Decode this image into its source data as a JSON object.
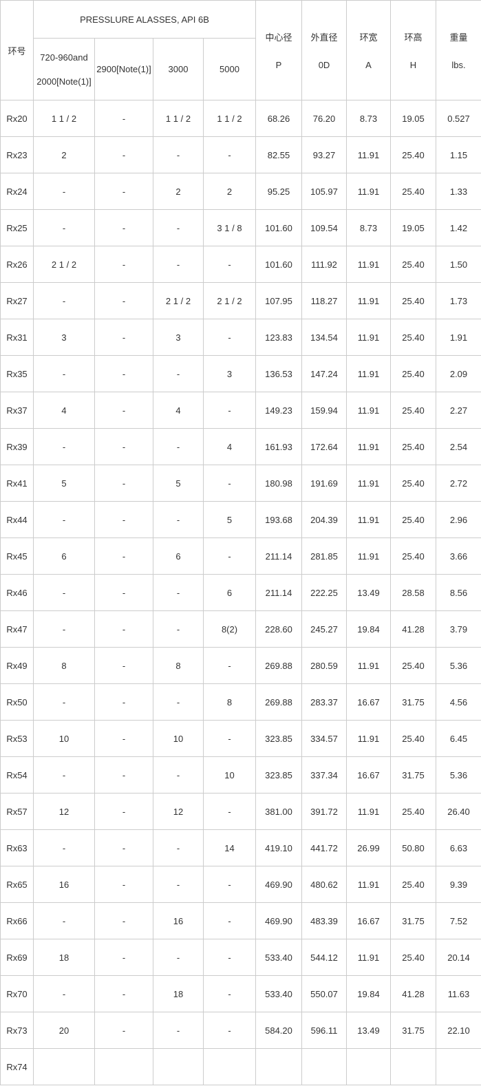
{
  "colors": {
    "border": "#cccccc",
    "text": "#333333",
    "background": "#ffffff"
  },
  "table": {
    "header": {
      "ring_no_label": "环号",
      "pressure_classes_title": "PRESSLURE ALASSES, API 6B",
      "pressure_class_cols": [
        {
          "line1": "720-960and",
          "line2": "2000[Note(1)]"
        },
        {
          "line1": "2900[Note(1)]",
          "line2": ""
        },
        {
          "line1": "3000",
          "line2": ""
        },
        {
          "line1": "5000",
          "line2": ""
        }
      ],
      "metrics": [
        {
          "cn": "中心径",
          "sym": "P"
        },
        {
          "cn": "外直径",
          "sym": "0D"
        },
        {
          "cn": "环宽",
          "sym": "A"
        },
        {
          "cn": "环高",
          "sym": "H"
        },
        {
          "cn": "重量",
          "sym": "lbs."
        }
      ]
    },
    "rows": [
      {
        "ring": "Rx20",
        "cells": [
          "1 1 / 2",
          "-",
          "1 1 / 2",
          "1 1 / 2",
          "68.26",
          "76.20",
          "8.73",
          "19.05",
          "0.527"
        ]
      },
      {
        "ring": "Rx23",
        "cells": [
          "2",
          "-",
          "-",
          "-",
          "82.55",
          "93.27",
          "11.91",
          "25.40",
          "1.15"
        ]
      },
      {
        "ring": "Rx24",
        "cells": [
          "-",
          "-",
          "2",
          "2",
          "95.25",
          "105.97",
          "11.91",
          "25.40",
          "1.33"
        ]
      },
      {
        "ring": "Rx25",
        "cells": [
          "-",
          "-",
          "-",
          "3 1 / 8",
          "101.60",
          "109.54",
          "8.73",
          "19.05",
          "1.42"
        ]
      },
      {
        "ring": "Rx26",
        "cells": [
          "2 1 / 2",
          "-",
          "-",
          "-",
          "101.60",
          "111.92",
          "11.91",
          "25.40",
          "1.50"
        ]
      },
      {
        "ring": "Rx27",
        "cells": [
          "-",
          "-",
          "2 1 / 2",
          "2 1 / 2",
          "107.95",
          "118.27",
          "11.91",
          "25.40",
          "1.73"
        ]
      },
      {
        "ring": "Rx31",
        "cells": [
          "3",
          "-",
          "3",
          "-",
          "123.83",
          "134.54",
          "11.91",
          "25.40",
          "1.91"
        ]
      },
      {
        "ring": "Rx35",
        "cells": [
          "-",
          "-",
          "-",
          "3",
          "136.53",
          "147.24",
          "11.91",
          "25.40",
          "2.09"
        ]
      },
      {
        "ring": "Rx37",
        "cells": [
          "4",
          "-",
          "4",
          "-",
          "149.23",
          "159.94",
          "11.91",
          "25.40",
          "2.27"
        ]
      },
      {
        "ring": "Rx39",
        "cells": [
          "-",
          "-",
          "-",
          "4",
          "161.93",
          "172.64",
          "11.91",
          "25.40",
          "2.54"
        ]
      },
      {
        "ring": "Rx41",
        "cells": [
          "5",
          "-",
          "5",
          "-",
          "180.98",
          "191.69",
          "11.91",
          "25.40",
          "2.72"
        ]
      },
      {
        "ring": "Rx44",
        "cells": [
          "-",
          "-",
          "-",
          "5",
          "193.68",
          "204.39",
          "11.91",
          "25.40",
          "2.96"
        ]
      },
      {
        "ring": "Rx45",
        "cells": [
          "6",
          "-",
          "6",
          "-",
          "211.14",
          "281.85",
          "11.91",
          "25.40",
          "3.66"
        ]
      },
      {
        "ring": "Rx46",
        "cells": [
          "-",
          "-",
          "-",
          "6",
          "211.14",
          "222.25",
          "13.49",
          "28.58",
          "8.56"
        ]
      },
      {
        "ring": "Rx47",
        "cells": [
          "-",
          "-",
          "-",
          "8(2)",
          "228.60",
          "245.27",
          "19.84",
          "41.28",
          "3.79"
        ]
      },
      {
        "ring": "Rx49",
        "cells": [
          "8",
          "-",
          "8",
          "-",
          "269.88",
          "280.59",
          "11.91",
          "25.40",
          "5.36"
        ]
      },
      {
        "ring": "Rx50",
        "cells": [
          "-",
          "-",
          "-",
          "8",
          "269.88",
          "283.37",
          "16.67",
          "31.75",
          "4.56"
        ]
      },
      {
        "ring": "Rx53",
        "cells": [
          "10",
          "-",
          "10",
          "-",
          "323.85",
          "334.57",
          "11.91",
          "25.40",
          "6.45"
        ]
      },
      {
        "ring": "Rx54",
        "cells": [
          "-",
          "-",
          "-",
          "10",
          "323.85",
          "337.34",
          "16.67",
          "31.75",
          "5.36"
        ]
      },
      {
        "ring": "Rx57",
        "cells": [
          "12",
          "-",
          "12",
          "-",
          "381.00",
          "391.72",
          "11.91",
          "25.40",
          "26.40"
        ]
      },
      {
        "ring": "Rx63",
        "cells": [
          "-",
          "-",
          "-",
          "14",
          "419.10",
          "441.72",
          "26.99",
          "50.80",
          "6.63"
        ]
      },
      {
        "ring": "Rx65",
        "cells": [
          "16",
          "-",
          "-",
          "-",
          "469.90",
          "480.62",
          "11.91",
          "25.40",
          "9.39"
        ]
      },
      {
        "ring": "Rx66",
        "cells": [
          "-",
          "-",
          "16",
          "-",
          "469.90",
          "483.39",
          "16.67",
          "31.75",
          "7.52"
        ]
      },
      {
        "ring": "Rx69",
        "cells": [
          "18",
          "-",
          "-",
          "-",
          "533.40",
          "544.12",
          "11.91",
          "25.40",
          "20.14"
        ]
      },
      {
        "ring": "Rx70",
        "cells": [
          "-",
          "-",
          "18",
          "-",
          "533.40",
          "550.07",
          "19.84",
          "41.28",
          "11.63"
        ]
      },
      {
        "ring": "Rx73",
        "cells": [
          "20",
          "-",
          "-",
          "-",
          "584.20",
          "596.11",
          "13.49",
          "31.75",
          "22.10"
        ]
      },
      {
        "ring": "Rx74",
        "cells": [
          "",
          "",
          "",
          "",
          "",
          "",
          "",
          "",
          ""
        ]
      }
    ]
  }
}
